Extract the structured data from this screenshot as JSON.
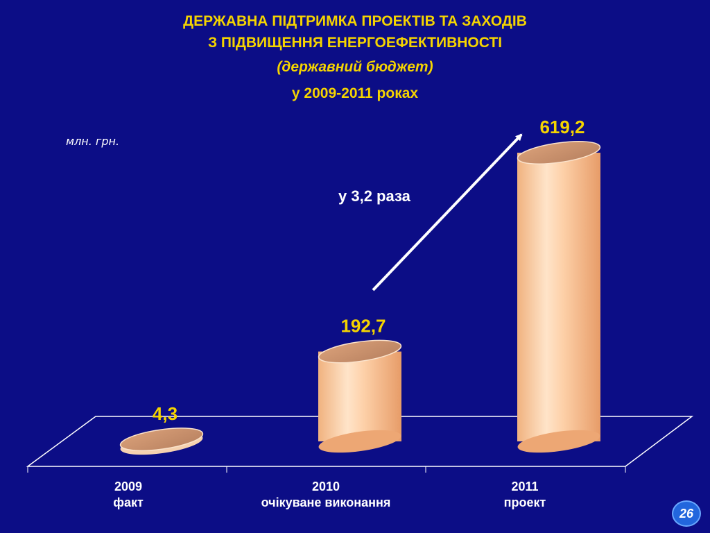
{
  "title": {
    "line1": "ДЕРЖАВНА ПІДТРИМКА ПРОЕКТІВ ТА ЗАХОДІВ",
    "line2": "З ПІДВИЩЕННЯ ЕНЕРГОЕФЕКТИВНОСТІ",
    "line3": "(державний бюджет)",
    "line4": "у 2009-2011 роках"
  },
  "unit_label": "млн. грн.",
  "growth_annotation": "у  3,2 раза",
  "slide_number": "26",
  "colors": {
    "background": "#0c0d86",
    "title": "#f5d400",
    "value_labels": "#f5d400",
    "bars": "#f4b98a",
    "bar_top": "#c9916b"
  },
  "chart_data": {
    "type": "bar",
    "categories": [
      {
        "year": "2009",
        "note": "факт"
      },
      {
        "year": "2010",
        "note": "очікуване виконання"
      },
      {
        "year": "2011",
        "note": "проект"
      }
    ],
    "values": [
      4.3,
      192.7,
      619.2
    ],
    "value_labels": [
      "4,3",
      "192,7",
      "619,2"
    ],
    "title": "ДЕРЖАВНА ПІДТРИМКА ПРОЕКТІВ ТА ЗАХОДІВ З ПІДВИЩЕННЯ ЕНЕРГОЕФЕКТИВНОСТІ",
    "ylabel": "млн. грн.",
    "ylim": [
      0,
      650
    ],
    "grid": false,
    "legend": "none"
  }
}
